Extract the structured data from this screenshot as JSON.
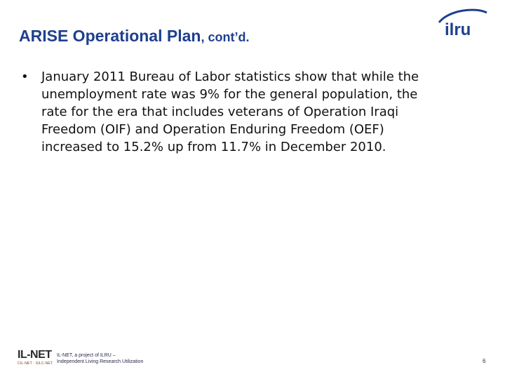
{
  "title": {
    "main": "ARISE Operational Plan",
    "suffix": ", cont’d."
  },
  "bullets": [
    {
      "marker": "•",
      "lines": [
        "January 2011 Bureau of Labor statistics show that while the",
        "unemployment rate was 9% for the general population, the",
        "rate for the era that includes veterans of Operation Iraqi",
        "Freedom (OIF) and Operation Enduring Freedom (OEF)",
        "increased to 15.2% up from 11.7% in December 2010."
      ]
    }
  ],
  "logo": {
    "text": "ilru",
    "color": "#1f3f8f",
    "accent": "#c0272d"
  },
  "footer": {
    "brand": "IL-NET",
    "brand_sub": "CIL-NET · SILC-NET",
    "tagline_line1": "IL-NET, a project of ILRU –",
    "tagline_line2": "Independent Living Research Utilization",
    "page_number": "6"
  }
}
